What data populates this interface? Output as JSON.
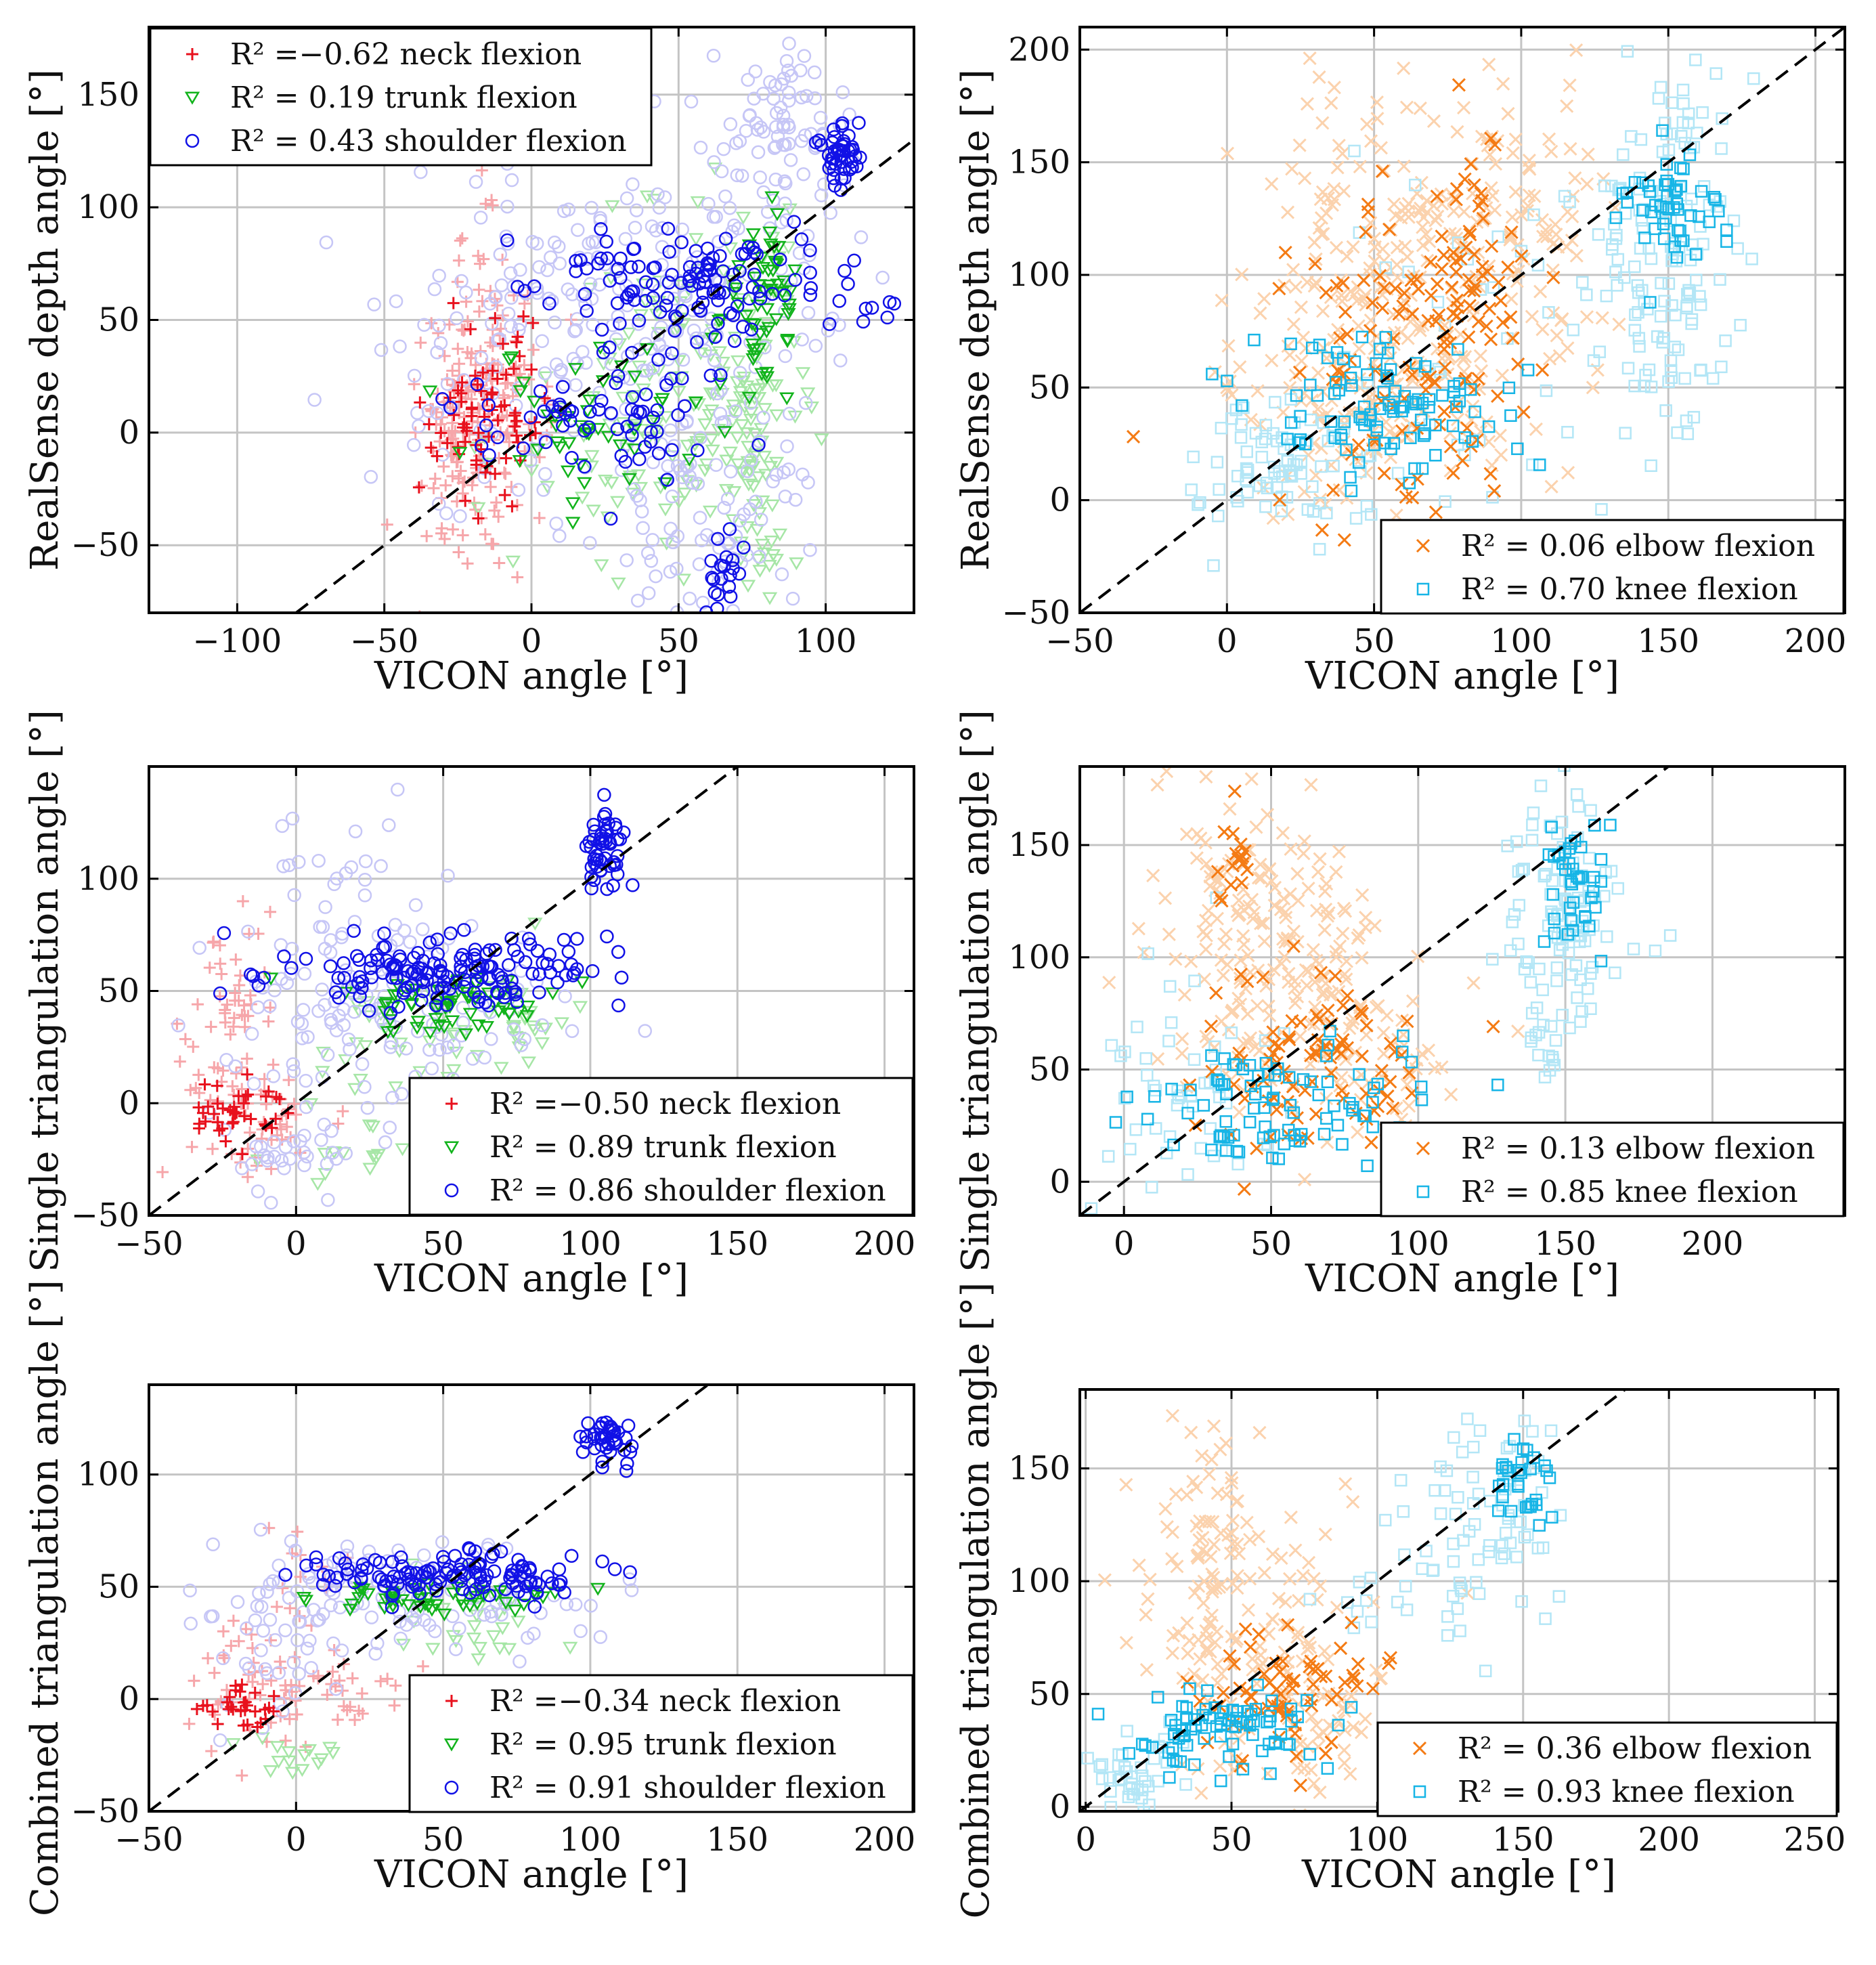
{
  "chart_data": [
    {
      "id": "p1",
      "type": "scatter",
      "xlabel": "VICON angle [°]",
      "ylabel": "RealSense depth angle [°]",
      "xlim": [
        -130,
        130
      ],
      "ylim": [
        -80,
        180
      ],
      "xticks": [
        -100,
        -50,
        0,
        50,
        100
      ],
      "yticks": [
        -50,
        0,
        50,
        100,
        150
      ],
      "grid": true,
      "legend_position": "top-left",
      "reference_line": "y = x",
      "series": [
        {
          "name": "R² =−0.62 neck flexion",
          "marker": "plus",
          "color": "#e8111d",
          "light_color": "#f6a6aa",
          "clusters": [
            [
              -18,
              15,
              10,
              35,
              70
            ],
            [
              -25,
              -5,
              6,
              20,
              40
            ],
            [
              -10,
              10,
              15,
              25,
              30
            ],
            [
              -18,
              5,
              8,
              20,
              40
            ],
            [
              -20,
              40,
              8,
              30,
              28
            ]
          ],
          "dark_clusters": [
            [
              -15,
              5,
              10,
              18,
              55
            ],
            [
              -10,
              30,
              8,
              25,
              20
            ]
          ]
        },
        {
          "name": "R² =  0.19 trunk flexion",
          "marker": "triangle-down",
          "color": "#11b31b",
          "light_color": "#a6e6a6",
          "clusters": [
            [
              55,
              15,
              20,
              40,
              95
            ],
            [
              78,
              5,
              8,
              45,
              70
            ],
            [
              40,
              0,
              25,
              25,
              55
            ]
          ],
          "dark_clusters": [
            [
              82,
              60,
              4,
              18,
              35
            ],
            [
              20,
              5,
              20,
              15,
              45
            ],
            [
              75,
              45,
              8,
              20,
              25
            ]
          ]
        },
        {
          "name": "R² =  0.43 shoulder flexion",
          "marker": "circle",
          "color": "#1111e6",
          "light_color": "#c6c6f6",
          "clusters": [
            [
              30,
              60,
              35,
              30,
              160
            ],
            [
              60,
              -30,
              20,
              30,
              100
            ],
            [
              90,
              140,
              10,
              20,
              55
            ],
            [
              -10,
              30,
              20,
              35,
              55
            ],
            [
              70,
              100,
              15,
              35,
              45
            ]
          ],
          "dark_clusters": [
            [
              60,
              65,
              30,
              12,
              130
            ],
            [
              105,
              125,
              4,
              8,
              45
            ],
            [
              20,
              10,
              25,
              15,
              70
            ],
            [
              65,
              -60,
              4,
              10,
              20
            ]
          ]
        }
      ]
    },
    {
      "id": "p2",
      "type": "scatter",
      "xlabel": "VICON angle [°]",
      "ylabel": "RealSense depth angle [°]",
      "xlim": [
        -50,
        210
      ],
      "ylim": [
        -50,
        210
      ],
      "xticks": [
        -50,
        0,
        50,
        100,
        150,
        200
      ],
      "yticks": [
        -50,
        0,
        50,
        100,
        150,
        200
      ],
      "grid": true,
      "legend_position": "bottom-right",
      "reference_line": "y = x",
      "series": [
        {
          "name": "R² =  0.06 elbow flexion",
          "marker": "x",
          "color": "#f47b14",
          "light_color": "#fbd2ad",
          "clusters": [
            [
              65,
              100,
              28,
              45,
              240
            ],
            [
              45,
              40,
              20,
              25,
              90
            ],
            [
              100,
              120,
              15,
              40,
              50
            ]
          ],
          "dark_clusters": [
            [
              65,
              60,
              22,
              35,
              110
            ],
            [
              80,
              110,
              8,
              30,
              40
            ]
          ]
        },
        {
          "name": "R² =  0.70 knee flexion",
          "marker": "square",
          "color": "#17b5e6",
          "light_color": "#b3e6f6",
          "clusters": [
            [
              150,
              110,
              12,
              40,
              130
            ],
            [
              20,
              15,
              15,
              15,
              80
            ],
            [
              100,
              80,
              30,
              40,
              50
            ]
          ],
          "dark_clusters": [
            [
              50,
              40,
              22,
              15,
              100
            ],
            [
              150,
              130,
              8,
              15,
              50
            ]
          ]
        }
      ]
    },
    {
      "id": "p3",
      "type": "scatter",
      "xlabel": "VICON angle [°]",
      "ylabel": "Single triangulation angle [°]",
      "xlim": [
        -50,
        210
      ],
      "ylim": [
        -50,
        150
      ],
      "xticks": [
        -50,
        0,
        50,
        100,
        150,
        200
      ],
      "yticks": [
        -50,
        0,
        50,
        100
      ],
      "grid": true,
      "legend_position": "bottom-right",
      "reference_line": "y = x",
      "series": [
        {
          "name": "R² =−0.50 neck flexion",
          "marker": "plus",
          "color": "#e8111d",
          "light_color": "#f6a6aa",
          "clusters": [
            [
              -25,
              10,
              8,
              25,
              50
            ],
            [
              -10,
              -10,
              10,
              10,
              30
            ],
            [
              -20,
              60,
              5,
              15,
              20
            ]
          ],
          "dark_clusters": [
            [
              -20,
              -5,
              8,
              8,
              40
            ]
          ]
        },
        {
          "name": "R² =  0.89 trunk flexion",
          "marker": "triangle-down",
          "color": "#11b31b",
          "light_color": "#a6e6a6",
          "clusters": [
            [
              40,
              25,
              20,
              15,
              40
            ],
            [
              80,
              35,
              5,
              15,
              15
            ],
            [
              15,
              -25,
              15,
              8,
              15
            ]
          ],
          "dark_clusters": [
            [
              50,
              45,
              18,
              6,
              60
            ]
          ]
        },
        {
          "name": "R² =  0.86 shoulder flexion",
          "marker": "circle",
          "color": "#1111e6",
          "light_color": "#c6c6f6",
          "clusters": [
            [
              30,
              40,
              30,
              25,
              140
            ],
            [
              15,
              90,
              15,
              25,
              30
            ],
            [
              -5,
              -20,
              15,
              12,
              30
            ]
          ],
          "dark_clusters": [
            [
              50,
              60,
              30,
              8,
              160
            ],
            [
              105,
              110,
              4,
              10,
              50
            ]
          ]
        }
      ]
    },
    {
      "id": "p4",
      "type": "scatter",
      "xlabel": "VICON angle [°]",
      "ylabel": "Single triangulation angle [°]",
      "xlim": [
        -15,
        245
      ],
      "ylim": [
        -15,
        185
      ],
      "xticks": [
        0,
        50,
        100,
        150,
        200
      ],
      "yticks": [
        0,
        50,
        100,
        150
      ],
      "grid": true,
      "legend_position": "bottom-right",
      "reference_line": "y = x",
      "series": [
        {
          "name": "R² =  0.13 elbow flexion",
          "marker": "x",
          "color": "#f47b14",
          "light_color": "#fbd2ad",
          "clusters": [
            [
              55,
              90,
              22,
              35,
              170
            ],
            [
              40,
              130,
              10,
              25,
              50
            ],
            [
              90,
              50,
              15,
              20,
              40
            ]
          ],
          "dark_clusters": [
            [
              65,
              50,
              20,
              20,
              90
            ],
            [
              38,
              140,
              4,
              15,
              20
            ]
          ]
        },
        {
          "name": "R² =  0.85 knee flexion",
          "marker": "square",
          "color": "#17b5e6",
          "light_color": "#b3e6f6",
          "clusters": [
            [
              150,
              120,
              10,
              25,
              100
            ],
            [
              20,
              40,
              15,
              30,
              50
            ],
            [
              145,
              60,
              4,
              8,
              15
            ]
          ],
          "dark_clusters": [
            [
              50,
              35,
              25,
              15,
              90
            ],
            [
              155,
              130,
              6,
              15,
              40
            ]
          ]
        }
      ]
    },
    {
      "id": "p5",
      "type": "scatter",
      "xlabel": "VICON angle [°]",
      "ylabel": "Combined triangulation angle [°]",
      "xlim": [
        -50,
        210
      ],
      "ylim": [
        -50,
        140
      ],
      "xticks": [
        -50,
        0,
        50,
        100,
        150,
        200
      ],
      "yticks": [
        -50,
        0,
        50,
        100
      ],
      "grid": true,
      "legend_position": "bottom-right",
      "reference_line": "y = x",
      "series": [
        {
          "name": "R² =−0.34 neck flexion",
          "marker": "plus",
          "color": "#e8111d",
          "light_color": "#f6a6aa",
          "clusters": [
            [
              -15,
              5,
              10,
              15,
              50
            ],
            [
              5,
              60,
              8,
              20,
              15
            ],
            [
              25,
              0,
              15,
              10,
              25
            ]
          ],
          "dark_clusters": [
            [
              -20,
              -5,
              8,
              6,
              30
            ]
          ]
        },
        {
          "name": "R² =  0.95 trunk flexion",
          "marker": "triangle-down",
          "color": "#11b31b",
          "light_color": "#a6e6a6",
          "clusters": [
            [
              60,
              35,
              15,
              15,
              30
            ],
            [
              0,
              -25,
              10,
              5,
              15
            ]
          ],
          "dark_clusters": [
            [
              50,
              45,
              20,
              4,
              50
            ]
          ]
        },
        {
          "name": "R² =  0.91 shoulder flexion",
          "marker": "circle",
          "color": "#1111e6",
          "light_color": "#c6c6f6",
          "clusters": [
            [
              35,
              45,
              35,
              12,
              130
            ],
            [
              -10,
              20,
              15,
              20,
              25
            ]
          ],
          "dark_clusters": [
            [
              50,
              55,
              30,
              5,
              130
            ],
            [
              105,
              115,
              5,
              6,
              40
            ]
          ]
        }
      ]
    },
    {
      "id": "p6",
      "type": "scatter",
      "xlabel": "VICON angle [°]",
      "ylabel": "Combined triangulation angle [°]",
      "xlim": [
        -2,
        258
      ],
      "ylim": [
        -2,
        185
      ],
      "xticks": [
        0,
        50,
        100,
        150,
        200,
        250
      ],
      "yticks": [
        0,
        50,
        100,
        150
      ],
      "grid": true,
      "legend_position": "bottom-right",
      "reference_line": "y = x",
      "series": [
        {
          "name": "R² =  0.36 elbow flexion",
          "marker": "x",
          "color": "#f47b14",
          "light_color": "#fbd2ad",
          "clusters": [
            [
              55,
              75,
              20,
              35,
              140
            ],
            [
              40,
              130,
              8,
              20,
              40
            ],
            [
              85,
              40,
              10,
              20,
              30
            ]
          ],
          "dark_clusters": [
            [
              70,
              50,
              15,
              15,
              70
            ]
          ]
        },
        {
          "name": "R² =  0.93 knee flexion",
          "marker": "square",
          "color": "#17b5e6",
          "light_color": "#b3e6f6",
          "clusters": [
            [
              140,
              130,
              15,
              20,
              70
            ],
            [
              15,
              15,
              8,
              8,
              40
            ],
            [
              110,
              90,
              15,
              10,
              20
            ]
          ],
          "dark_clusters": [
            [
              45,
              35,
              20,
              10,
              80
            ],
            [
              150,
              145,
              5,
              12,
              30
            ]
          ]
        }
      ]
    }
  ]
}
